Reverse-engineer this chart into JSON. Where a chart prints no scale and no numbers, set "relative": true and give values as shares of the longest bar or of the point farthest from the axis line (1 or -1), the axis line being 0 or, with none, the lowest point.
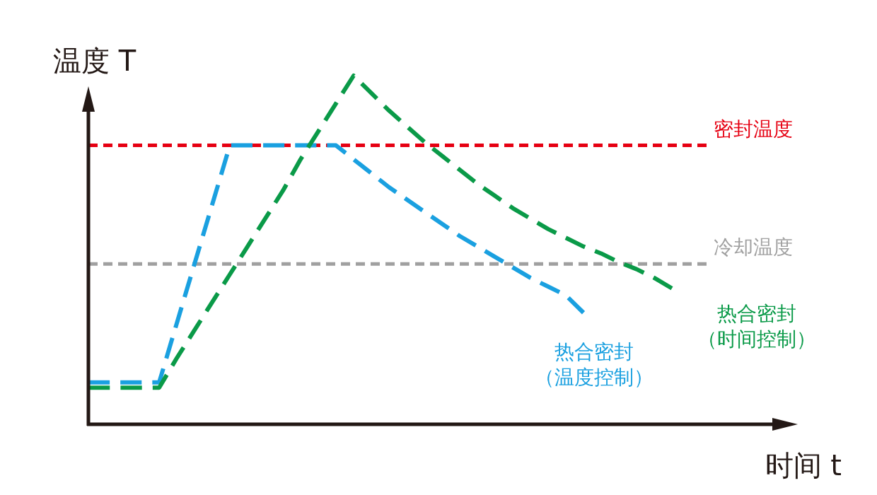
{
  "chart_data": {
    "type": "line",
    "relative": true,
    "xlabel": "时间 t",
    "ylabel": "温度 T",
    "line_style": "dashed",
    "categories": [
      null,
      null,
      null,
      null,
      null,
      null,
      null,
      null,
      null,
      null,
      null,
      null,
      null,
      null,
      null,
      null,
      null,
      null,
      null,
      null,
      null,
      null,
      null,
      null,
      null,
      null,
      null,
      null,
      null,
      null,
      null,
      null,
      null,
      null,
      null,
      null
    ],
    "series": [
      {
        "name": "热合密封（温度控制）",
        "color": "#1aa0e0",
        "values": [
          0.12,
          0.12,
          0.12,
          0.12,
          0.12,
          0.29,
          0.46,
          0.63,
          0.8,
          0.8,
          0.8,
          0.8,
          0.8,
          0.8,
          0.8,
          0.76,
          0.72,
          0.68,
          0.645,
          0.61,
          0.575,
          0.54,
          0.51,
          0.48,
          0.45,
          0.42,
          0.395,
          0.37,
          0.32,
          null,
          null,
          null,
          null,
          null,
          null,
          null
        ]
      },
      {
        "name": "热合密封（时间控制）",
        "color": "#0a9a48",
        "values": [
          0.105,
          0.105,
          0.105,
          0.105,
          0.105,
          0.19,
          0.27,
          0.35,
          0.43,
          0.51,
          0.59,
          0.67,
          0.76,
          0.84,
          0.92,
          1.0,
          0.95,
          0.9,
          0.855,
          0.81,
          0.77,
          0.73,
          0.69,
          0.655,
          0.62,
          0.59,
          0.56,
          0.535,
          0.51,
          0.49,
          0.465,
          0.445,
          0.42,
          0.39,
          null,
          null
        ]
      }
    ],
    "ref_lines": [
      {
        "axis": "y",
        "value": 0.8,
        "label": "密封温度",
        "color": "#e60012",
        "line_style": "dashed"
      },
      {
        "axis": "y",
        "value": 0.46,
        "label": "冷却温度",
        "color": "#a0a0a0",
        "line_style": "dashed"
      }
    ]
  }
}
